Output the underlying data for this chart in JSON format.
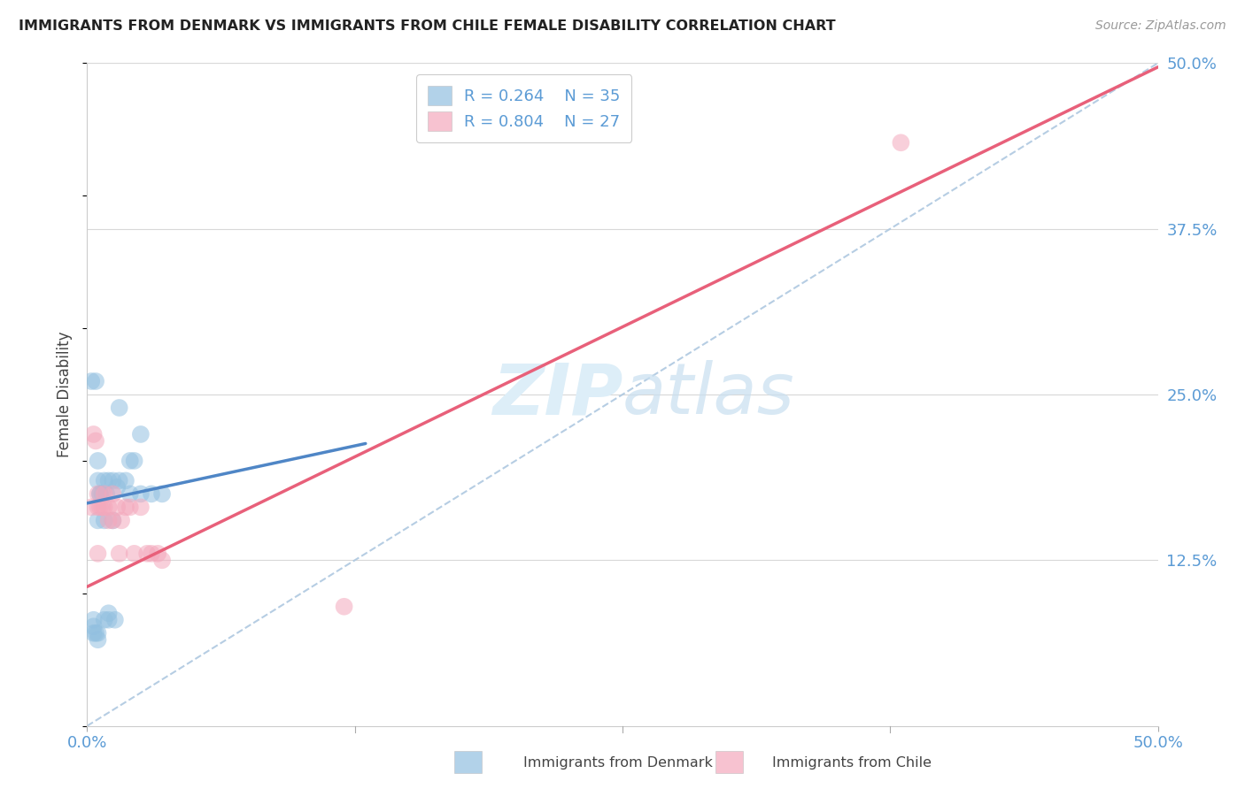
{
  "title": "IMMIGRANTS FROM DENMARK VS IMMIGRANTS FROM CHILE FEMALE DISABILITY CORRELATION CHART",
  "source": "Source: ZipAtlas.com",
  "ylabel": "Female Disability",
  "xlim": [
    0.0,
    0.5
  ],
  "ylim": [
    0.0,
    0.5
  ],
  "denmark_R": 0.264,
  "denmark_N": 35,
  "chile_R": 0.804,
  "chile_N": 27,
  "denmark_color": "#92c0e0",
  "chile_color": "#f4a8bc",
  "denmark_line_color": "#4f86c6",
  "chile_line_color": "#e8607a",
  "diagonal_color": "#aec8e0",
  "background_color": "#ffffff",
  "grid_color": "#d8d8d8",
  "watermark_color": "#ddeef8",
  "title_color": "#222222",
  "source_color": "#999999",
  "axis_label_color": "#5b9bd5",
  "ylabel_color": "#444444",
  "legend_text_color": "#5b9bd5",
  "bottom_legend_color": "#444444",
  "denmark_x": [
    0.002,
    0.003,
    0.003,
    0.004,
    0.005,
    0.005,
    0.005,
    0.006,
    0.006,
    0.007,
    0.008,
    0.008,
    0.009,
    0.01,
    0.01,
    0.012,
    0.012,
    0.013,
    0.014,
    0.015,
    0.015,
    0.018,
    0.02,
    0.02,
    0.022,
    0.025,
    0.025,
    0.03,
    0.035,
    0.003,
    0.004,
    0.005,
    0.005,
    0.008,
    0.01
  ],
  "denmark_y": [
    0.26,
    0.075,
    0.08,
    0.26,
    0.155,
    0.2,
    0.185,
    0.175,
    0.175,
    0.175,
    0.185,
    0.155,
    0.175,
    0.185,
    0.085,
    0.185,
    0.155,
    0.08,
    0.18,
    0.185,
    0.24,
    0.185,
    0.2,
    0.175,
    0.2,
    0.175,
    0.22,
    0.175,
    0.175,
    0.07,
    0.07,
    0.065,
    0.07,
    0.08,
    0.08
  ],
  "chile_x": [
    0.002,
    0.003,
    0.004,
    0.005,
    0.005,
    0.005,
    0.006,
    0.007,
    0.008,
    0.008,
    0.01,
    0.01,
    0.012,
    0.012,
    0.014,
    0.015,
    0.016,
    0.018,
    0.02,
    0.022,
    0.025,
    0.028,
    0.03,
    0.033,
    0.035,
    0.12,
    0.38
  ],
  "chile_y": [
    0.165,
    0.22,
    0.215,
    0.175,
    0.165,
    0.13,
    0.165,
    0.165,
    0.175,
    0.165,
    0.155,
    0.165,
    0.175,
    0.155,
    0.165,
    0.13,
    0.155,
    0.165,
    0.165,
    0.13,
    0.165,
    0.13,
    0.13,
    0.13,
    0.125,
    0.09,
    0.44
  ],
  "denmark_line_x": [
    0.0,
    0.13
  ],
  "denmark_line_y": [
    0.168,
    0.213
  ],
  "chile_line_x": [
    0.0,
    0.5
  ],
  "chile_line_y": [
    0.105,
    0.497
  ]
}
